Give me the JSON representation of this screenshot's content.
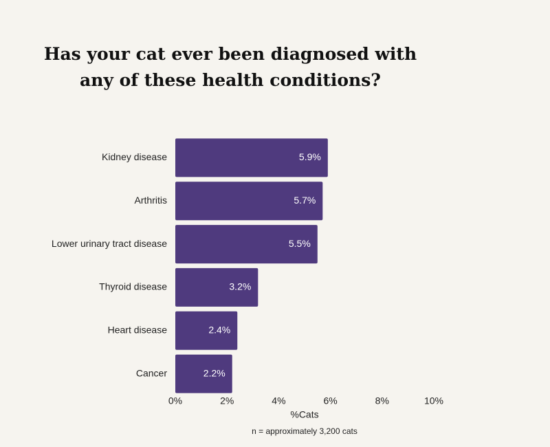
{
  "chart_data": {
    "type": "barh",
    "title": "Has your cat ever been diagnosed with any of these health conditions?",
    "categories": [
      "Kidney disease",
      "Arthritis",
      "Lower urinary tract disease",
      "Thyroid disease",
      "Heart disease",
      "Cancer"
    ],
    "values": [
      5.9,
      5.7,
      5.5,
      3.2,
      2.4,
      2.2
    ],
    "value_labels": [
      "5.9%",
      "5.7%",
      "5.5%",
      "3.2%",
      "2.4%",
      "2.2%"
    ],
    "color": "#4f3a7e",
    "xlim": [
      0,
      10
    ],
    "xticks": [
      {
        "value": 0,
        "label": "0%"
      },
      {
        "value": 2,
        "label": "2%"
      },
      {
        "value": 4,
        "label": "4%"
      },
      {
        "value": 6,
        "label": "6%"
      },
      {
        "value": 8,
        "label": "8%"
      },
      {
        "value": 10,
        "label": "10%"
      }
    ],
    "xlabel": "%Cats",
    "note": "n = approximately 3,200 cats",
    "grid": false
  }
}
